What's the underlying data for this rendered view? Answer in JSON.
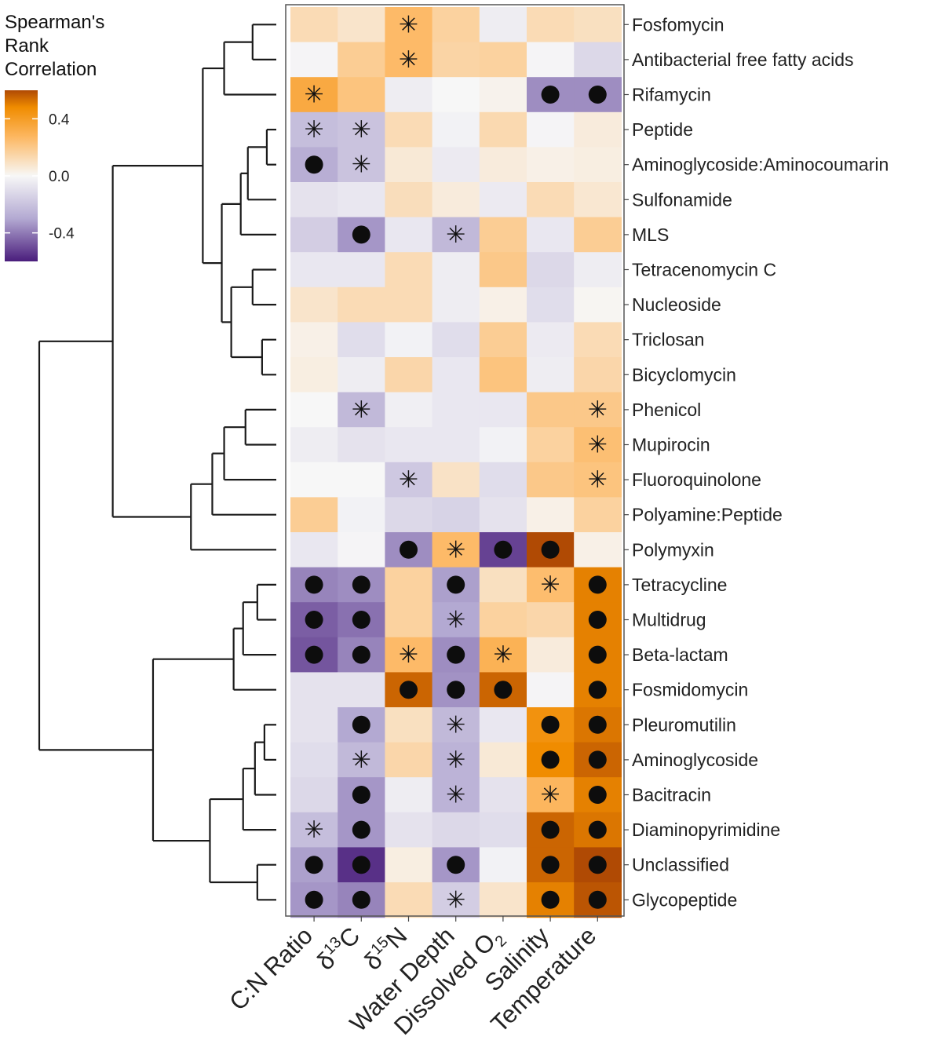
{
  "chart_data": {
    "type": "heatmap",
    "legend": {
      "title_lines": [
        "Spearman's",
        "Rank",
        "Correlation"
      ],
      "ticks": [
        {
          "label": "0.4",
          "value": 0.4
        },
        {
          "label": "0.0",
          "value": 0.0
        },
        {
          "label": "-0.4",
          "value": -0.4
        }
      ],
      "range": [
        -0.6,
        0.6
      ],
      "colors": {
        "low": "#4a1d7c",
        "mid": "#f7f7f7",
        "high": "#b04a04",
        "mid_low": "#b3a9d2",
        "mid_high": "#fdb863",
        "strong_high": "#f08c00"
      }
    },
    "columns": [
      {
        "main": "C:N Ratio",
        "pre": "",
        "sup": "",
        "sub": ""
      },
      {
        "main": "C",
        "pre": "δ",
        "sup": "13",
        "sub": ""
      },
      {
        "main": "N",
        "pre": "δ",
        "sup": "15",
        "sub": ""
      },
      {
        "main": "Water Depth",
        "pre": "",
        "sup": "",
        "sub": ""
      },
      {
        "main": "Dissolved O",
        "pre": "",
        "sup": "",
        "sub": "2"
      },
      {
        "main": "Salinity",
        "pre": "",
        "sup": "",
        "sub": ""
      },
      {
        "main": "Temperature",
        "pre": "",
        "sup": "",
        "sub": ""
      }
    ],
    "rows": [
      "Fosfomycin",
      "Antibacterial free fatty acids",
      "Rifamycin",
      "Peptide",
      "Aminoglycoside:Aminocoumarin",
      "Sulfonamide",
      "MLS",
      "Tetracenomycin C",
      "Nucleoside",
      "Triclosan",
      "Bicyclomycin",
      "Phenicol",
      "Mupirocin",
      "Fluoroquinolone",
      "Polyamine:Peptide",
      "Polymyxin",
      "Tetracycline",
      "Multidrug",
      "Beta-lactam",
      "Fosmidomycin",
      "Pleuromutilin",
      "Aminoglycoside",
      "Bacitracin",
      "Diaminopyrimidine",
      "Unclassified",
      "Glycopeptide"
    ],
    "values": [
      [
        0.12,
        0.08,
        0.26,
        0.16,
        -0.04,
        0.12,
        0.1
      ],
      [
        -0.01,
        0.18,
        0.26,
        0.15,
        0.16,
        -0.01,
        -0.12
      ],
      [
        0.34,
        0.22,
        -0.04,
        0.0,
        0.02,
        -0.36,
        -0.36
      ],
      [
        -0.22,
        -0.2,
        0.12,
        -0.02,
        0.13,
        -0.01,
        0.05
      ],
      [
        -0.28,
        -0.2,
        0.06,
        -0.05,
        0.05,
        0.03,
        0.04
      ],
      [
        -0.08,
        -0.06,
        0.11,
        0.05,
        -0.05,
        0.12,
        0.07
      ],
      [
        -0.16,
        -0.34,
        -0.06,
        -0.24,
        0.18,
        -0.06,
        0.18
      ],
      [
        -0.06,
        -0.06,
        0.12,
        -0.04,
        0.2,
        -0.12,
        -0.04
      ],
      [
        0.08,
        0.12,
        0.12,
        -0.04,
        0.03,
        -0.1,
        0.01
      ],
      [
        0.03,
        -0.1,
        -0.02,
        -0.1,
        0.18,
        -0.05,
        0.12
      ],
      [
        0.04,
        -0.04,
        0.14,
        -0.06,
        0.22,
        -0.04,
        0.14
      ],
      [
        0.0,
        -0.24,
        -0.03,
        -0.06,
        -0.06,
        0.2,
        0.2
      ],
      [
        -0.04,
        -0.08,
        -0.06,
        -0.06,
        -0.02,
        0.16,
        0.24
      ],
      [
        0.0,
        0.0,
        -0.18,
        0.09,
        -0.1,
        0.2,
        0.22
      ],
      [
        0.18,
        -0.02,
        -0.12,
        -0.14,
        -0.08,
        0.03,
        0.16
      ],
      [
        -0.06,
        -0.01,
        -0.36,
        0.26,
        -0.52,
        0.62,
        0.03
      ],
      [
        -0.38,
        -0.36,
        0.16,
        -0.32,
        0.1,
        0.25,
        0.5
      ],
      [
        -0.46,
        -0.42,
        0.16,
        -0.3,
        0.16,
        0.14,
        0.5
      ],
      [
        -0.48,
        -0.38,
        0.26,
        -0.36,
        0.3,
        0.05,
        0.5
      ],
      [
        -0.08,
        -0.08,
        0.55,
        -0.35,
        0.55,
        -0.01,
        0.5
      ],
      [
        -0.08,
        -0.3,
        0.1,
        -0.24,
        -0.06,
        0.45,
        0.52
      ],
      [
        -0.1,
        -0.24,
        0.14,
        -0.26,
        0.06,
        0.48,
        0.55
      ],
      [
        -0.12,
        -0.34,
        -0.04,
        -0.26,
        -0.08,
        0.28,
        0.5
      ],
      [
        -0.22,
        -0.34,
        -0.08,
        -0.12,
        -0.1,
        0.55,
        0.52
      ],
      [
        -0.32,
        -0.56,
        0.04,
        -0.34,
        -0.02,
        0.55,
        0.66
      ],
      [
        -0.34,
        -0.38,
        0.12,
        -0.16,
        0.08,
        0.5,
        0.58
      ]
    ],
    "significance_note": "star = p < 0.05, dot = stronger significance",
    "significance": [
      [
        "",
        "",
        "star",
        "",
        "",
        "",
        ""
      ],
      [
        "",
        "",
        "star",
        "",
        "",
        "",
        ""
      ],
      [
        "star",
        "",
        "",
        "",
        "",
        "dot",
        "dot"
      ],
      [
        "star",
        "star",
        "",
        "",
        "",
        "",
        ""
      ],
      [
        "dot",
        "star",
        "",
        "",
        "",
        "",
        ""
      ],
      [
        "",
        "",
        "",
        "",
        "",
        "",
        ""
      ],
      [
        "",
        "dot",
        "",
        "star",
        "",
        "",
        ""
      ],
      [
        "",
        "",
        "",
        "",
        "",
        "",
        ""
      ],
      [
        "",
        "",
        "",
        "",
        "",
        "",
        ""
      ],
      [
        "",
        "",
        "",
        "",
        "",
        "",
        ""
      ],
      [
        "",
        "",
        "",
        "",
        "",
        "",
        ""
      ],
      [
        "",
        "star",
        "",
        "",
        "",
        "",
        "star"
      ],
      [
        "",
        "",
        "",
        "",
        "",
        "",
        "star"
      ],
      [
        "",
        "",
        "star",
        "",
        "",
        "",
        "star"
      ],
      [
        "",
        "",
        "",
        "",
        "",
        "",
        ""
      ],
      [
        "",
        "",
        "dot",
        "star",
        "dot",
        "dot",
        ""
      ],
      [
        "dot",
        "dot",
        "",
        "dot",
        "",
        "star",
        "dot"
      ],
      [
        "dot",
        "dot",
        "",
        "star",
        "",
        "",
        "dot"
      ],
      [
        "dot",
        "dot",
        "star",
        "dot",
        "star",
        "",
        "dot"
      ],
      [
        "",
        "",
        "dot",
        "dot",
        "dot",
        "",
        "dot"
      ],
      [
        "",
        "dot",
        "",
        "star",
        "",
        "dot",
        "dot"
      ],
      [
        "",
        "star",
        "",
        "star",
        "",
        "dot",
        "dot"
      ],
      [
        "",
        "dot",
        "",
        "star",
        "",
        "star",
        "dot"
      ],
      [
        "star",
        "dot",
        "",
        "",
        "",
        "dot",
        "dot"
      ],
      [
        "dot",
        "dot",
        "",
        "dot",
        "",
        "dot",
        "dot"
      ],
      [
        "dot",
        "dot",
        "",
        "star",
        "",
        "dot",
        "dot"
      ]
    ],
    "star_glyph": "✳",
    "dendrogram": {
      "leaf_order": [
        0,
        1,
        2,
        3,
        4,
        5,
        6,
        7,
        8,
        9,
        10,
        11,
        12,
        13,
        14,
        15,
        16,
        17,
        18,
        19,
        20,
        21,
        22,
        23,
        24,
        25
      ],
      "merges": [
        {
          "a": 0,
          "b": 1,
          "height": 0.1
        },
        {
          "a": 26,
          "b": 2,
          "height": 0.22
        },
        {
          "a": 3,
          "b": 4,
          "height": 0.04
        },
        {
          "a": 28,
          "b": 5,
          "height": 0.12
        },
        {
          "a": 29,
          "b": 6,
          "height": 0.15
        },
        {
          "a": 7,
          "b": 8,
          "height": 0.1
        },
        {
          "a": 9,
          "b": 10,
          "height": 0.06
        },
        {
          "a": 31,
          "b": 32,
          "height": 0.19
        },
        {
          "a": 30,
          "b": 33,
          "height": 0.23
        },
        {
          "a": 27,
          "b": 34,
          "height": 0.31
        },
        {
          "a": 11,
          "b": 12,
          "height": 0.13
        },
        {
          "a": 36,
          "b": 13,
          "height": 0.22
        },
        {
          "a": 37,
          "b": 14,
          "height": 0.27
        },
        {
          "a": 38,
          "b": 15,
          "height": 0.36
        },
        {
          "a": 35,
          "b": 39,
          "height": 0.69
        },
        {
          "a": 16,
          "b": 17,
          "height": 0.08
        },
        {
          "a": 41,
          "b": 18,
          "height": 0.14
        },
        {
          "a": 42,
          "b": 19,
          "height": 0.18
        },
        {
          "a": 20,
          "b": 21,
          "height": 0.05
        },
        {
          "a": 44,
          "b": 22,
          "height": 0.09
        },
        {
          "a": 45,
          "b": 23,
          "height": 0.14
        },
        {
          "a": 24,
          "b": 25,
          "height": 0.08
        },
        {
          "a": 46,
          "b": 47,
          "height": 0.28
        },
        {
          "a": 43,
          "b": 48,
          "height": 0.52
        },
        {
          "a": 40,
          "b": 49,
          "height": 1.0
        }
      ]
    }
  }
}
